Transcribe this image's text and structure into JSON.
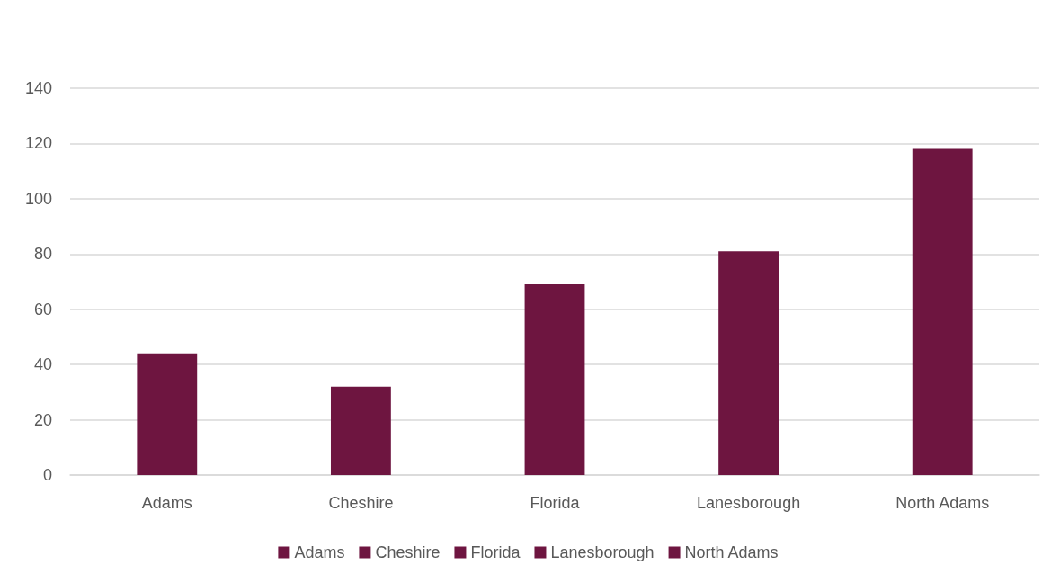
{
  "chart_data": {
    "type": "bar",
    "categories": [
      "Adams",
      "Cheshire",
      "Florida",
      "Lanesborough",
      "North Adams"
    ],
    "series": [
      {
        "name": "Adams",
        "color": "#6e1540",
        "values": [
          44,
          null,
          null,
          null,
          null
        ]
      },
      {
        "name": "Cheshire",
        "color": "#6e1540",
        "values": [
          null,
          32,
          null,
          null,
          null
        ]
      },
      {
        "name": "Florida",
        "color": "#6e1540",
        "values": [
          null,
          null,
          69,
          null,
          null
        ]
      },
      {
        "name": "Lanesborough",
        "color": "#6e1540",
        "values": [
          null,
          null,
          null,
          81,
          null
        ]
      },
      {
        "name": "North Adams",
        "color": "#6e1540",
        "values": [
          null,
          null,
          null,
          null,
          118
        ]
      }
    ],
    "ylim": [
      0,
      140
    ],
    "yticks": [
      0,
      20,
      40,
      60,
      80,
      100,
      120,
      140
    ],
    "grid": "y",
    "legend": "bottom"
  }
}
